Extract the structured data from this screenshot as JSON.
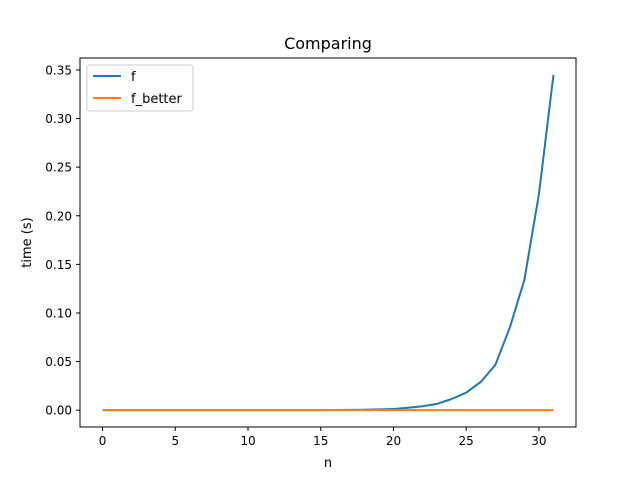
{
  "chart_data": {
    "type": "line",
    "title": "Comparing",
    "xlabel": "n",
    "ylabel": "time (s)",
    "xlim": [
      -1.55,
      32.55
    ],
    "ylim": [
      -0.0173,
      0.3623
    ],
    "xticks": [
      0,
      5,
      10,
      15,
      20,
      25,
      30
    ],
    "xtick_labels": [
      "0",
      "5",
      "10",
      "15",
      "20",
      "25",
      "30"
    ],
    "yticks": [
      0.0,
      0.05,
      0.1,
      0.15,
      0.2,
      0.25,
      0.3,
      0.35
    ],
    "ytick_labels": [
      "0.00",
      "0.05",
      "0.10",
      "0.15",
      "0.20",
      "0.25",
      "0.30",
      "0.35"
    ],
    "grid": false,
    "legend_position": "upper-left",
    "x": [
      0,
      1,
      2,
      3,
      4,
      5,
      6,
      7,
      8,
      9,
      10,
      11,
      12,
      13,
      14,
      15,
      16,
      17,
      18,
      19,
      20,
      21,
      22,
      23,
      24,
      25,
      26,
      27,
      28,
      29,
      30,
      31
    ],
    "series": [
      {
        "name": "f",
        "color": "#1f77b4",
        "values": [
          0.0,
          0.0,
          0.0,
          0.0,
          0.0,
          0.0,
          0.0,
          0.0,
          0.0,
          0.0,
          0.0,
          0.0,
          0.0,
          0.0,
          0.0001,
          0.0001,
          0.0002,
          0.0003,
          0.0005,
          0.0008,
          0.0012,
          0.0025,
          0.004,
          0.0065,
          0.0115,
          0.018,
          0.029,
          0.0465,
          0.085,
          0.134,
          0.222,
          0.345
        ]
      },
      {
        "name": "f_better",
        "color": "#ff7f0e",
        "values": [
          0.0,
          0.0,
          0.0,
          0.0,
          0.0,
          0.0,
          0.0,
          0.0,
          0.0,
          0.0,
          0.0,
          0.0,
          0.0,
          0.0,
          0.0,
          0.0,
          0.0,
          0.0,
          0.0,
          0.0,
          0.0,
          0.0,
          0.0,
          0.0,
          0.0,
          0.0,
          0.0,
          0.0,
          0.0,
          0.0,
          0.0,
          0.0
        ]
      }
    ]
  }
}
